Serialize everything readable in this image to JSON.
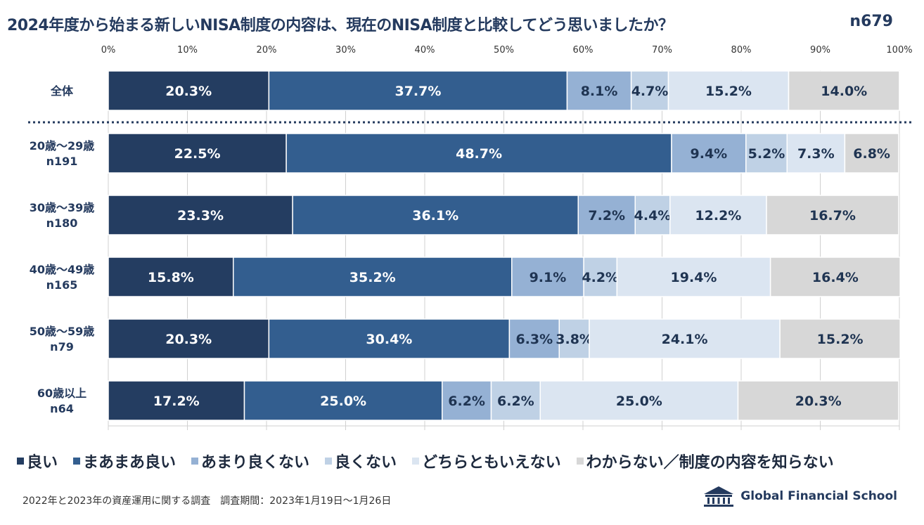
{
  "title": "2024年度から始まる新しいNISA制度の内容は、現在のNISA制度と比較してどう思いましたか？",
  "sample_size": "n679",
  "colors": {
    "title": "#243a5e",
    "grid": "#d0d0d0",
    "divider": "#243a5e",
    "series": [
      "#243d61",
      "#335e8f",
      "#95b1d4",
      "#bfd1e5",
      "#dbe5f1",
      "#d7d7d7"
    ],
    "label_text": [
      "#ffffff",
      "#ffffff",
      "#1f3452",
      "#1f3452",
      "#1f3452",
      "#1f3452"
    ]
  },
  "chart_data": {
    "type": "bar",
    "orientation": "horizontal",
    "stacked": true,
    "title": "2024年度から始まる新しいNISA制度の内容は、現在のNISA制度と比較してどう思いましたか？",
    "xlim": [
      0,
      100
    ],
    "x_ticks": [
      "0%",
      "10%",
      "20%",
      "30%",
      "40%",
      "50%",
      "60%",
      "70%",
      "80%",
      "90%",
      "100%"
    ],
    "grid": true,
    "legend_position": "bottom",
    "categories": [
      [
        "全体"
      ],
      [
        "20歳～29歳",
        "n191"
      ],
      [
        "30歳～39歳",
        "n180"
      ],
      [
        "40歳～49歳",
        "n165"
      ],
      [
        "50歳～59歳",
        "n79"
      ],
      [
        "60歳以上",
        "n64"
      ]
    ],
    "series": [
      {
        "name": "良い",
        "values": [
          20.3,
          22.5,
          23.3,
          15.8,
          20.3,
          17.2
        ]
      },
      {
        "name": "まあまあ良い",
        "values": [
          37.7,
          48.7,
          36.1,
          35.2,
          30.4,
          25.0
        ]
      },
      {
        "name": "あまり良くない",
        "values": [
          8.1,
          9.4,
          7.2,
          9.1,
          6.3,
          6.2
        ]
      },
      {
        "name": "良くない",
        "values": [
          4.7,
          5.2,
          4.4,
          4.2,
          3.8,
          6.2
        ]
      },
      {
        "name": "どちらともいえない",
        "values": [
          15.2,
          7.3,
          12.2,
          19.4,
          24.1,
          25.0
        ]
      },
      {
        "name": "わからない／制度の内容を知らない",
        "values": [
          14.0,
          6.8,
          16.7,
          16.4,
          15.2,
          20.3
        ]
      }
    ]
  },
  "footer": {
    "note": "2022年と2023年の資産運用に関する調査　調査期間：2023年1月19日～1月26日",
    "logo_text": "Global Financial School"
  }
}
